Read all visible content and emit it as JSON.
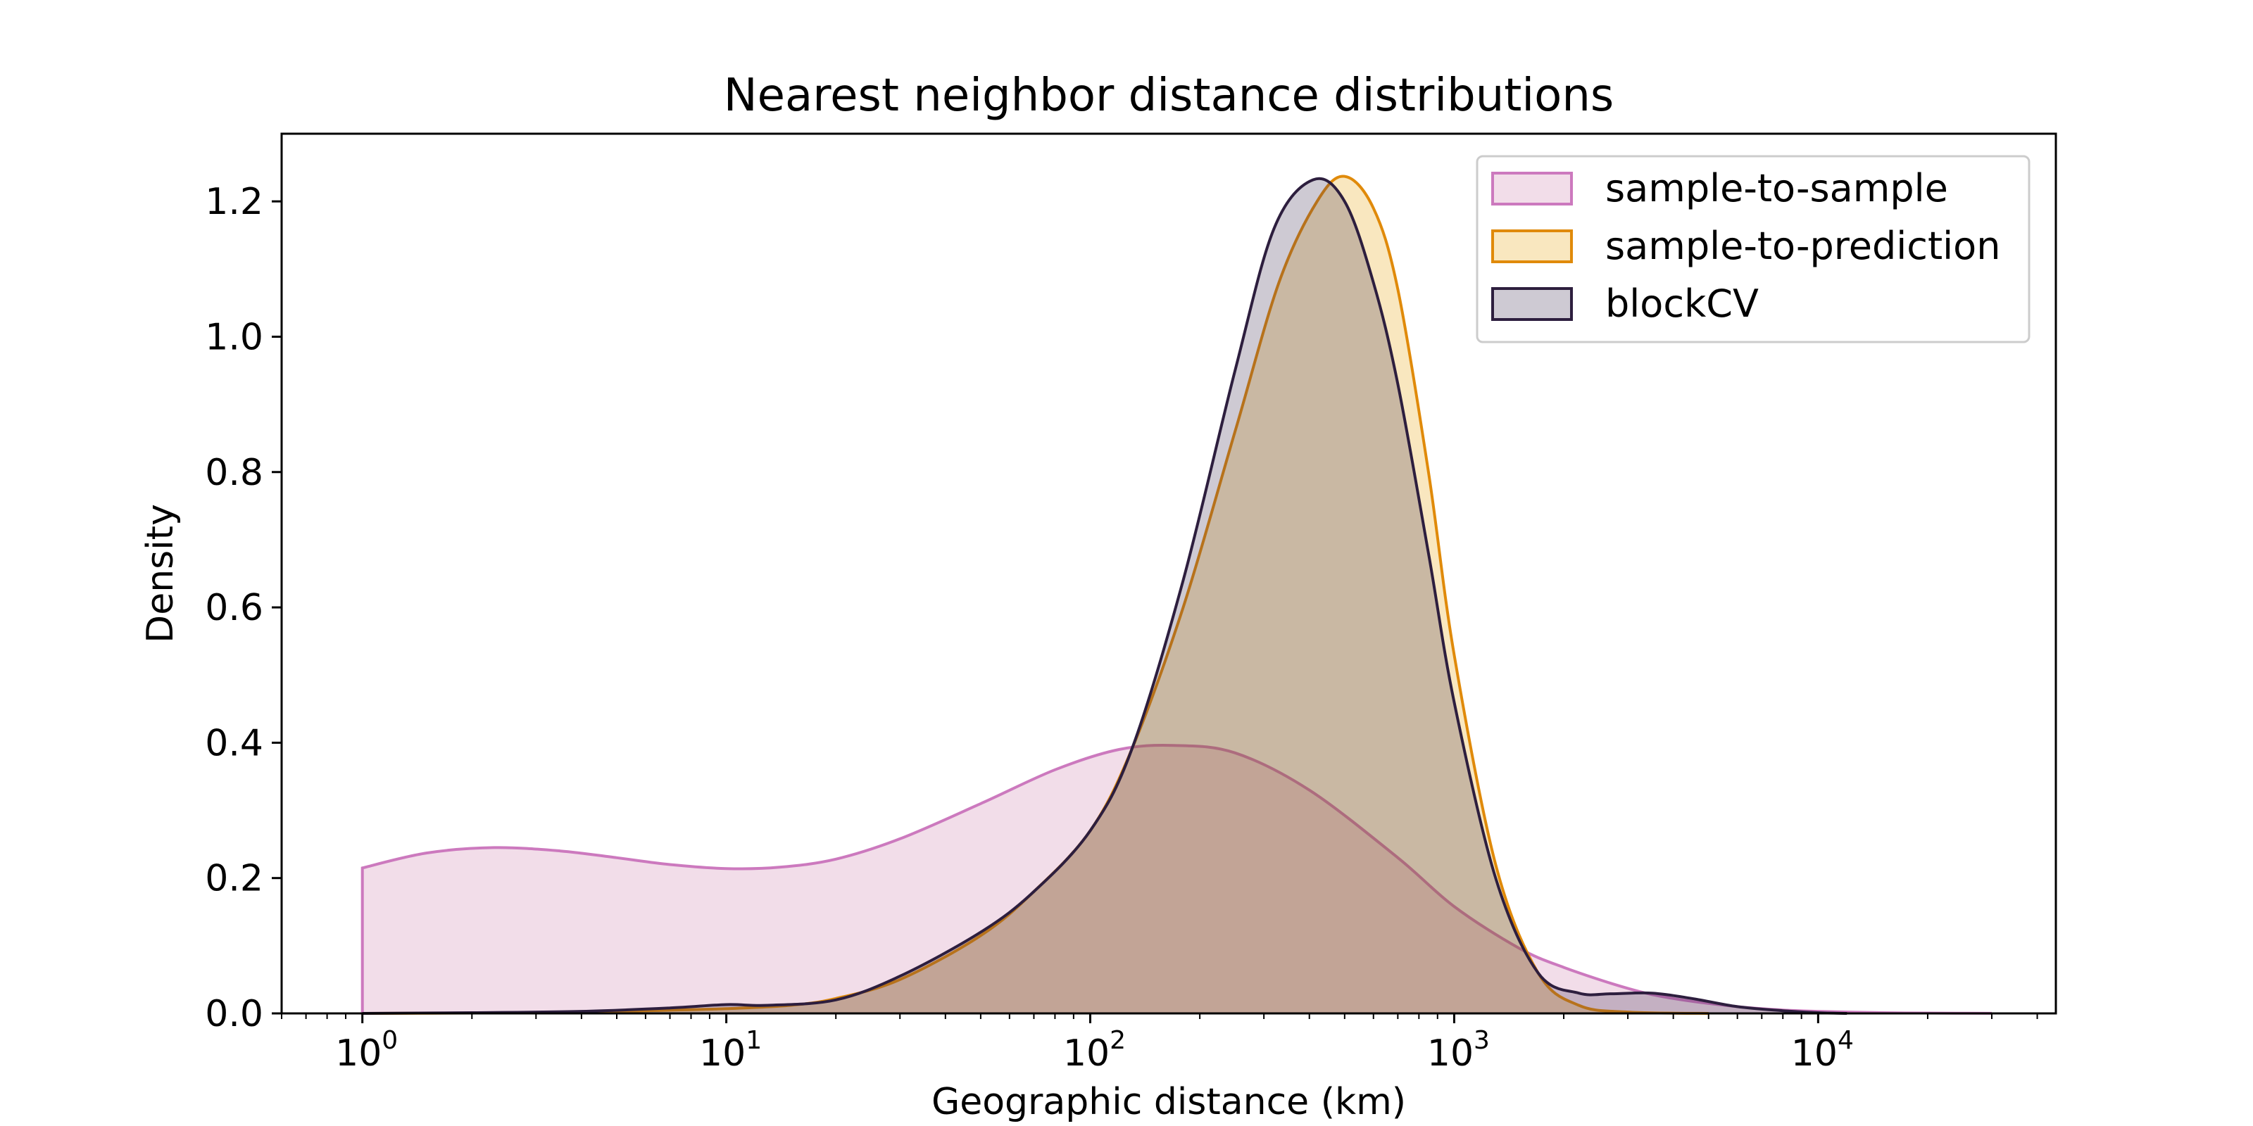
{
  "chart_data": {
    "type": "area",
    "title": "Nearest neighbor distance distributions",
    "xlabel": "Geographic distance (km)",
    "ylabel": "Density",
    "xscale": "log",
    "xlim": [
      0.6,
      45000
    ],
    "ylim": [
      0,
      1.3
    ],
    "grid": false,
    "legend_position": "top-right",
    "x_ticks": [
      {
        "value": 1,
        "base": "10",
        "exp": "0"
      },
      {
        "value": 10,
        "base": "10",
        "exp": "1"
      },
      {
        "value": 100,
        "base": "10",
        "exp": "2"
      },
      {
        "value": 1000,
        "base": "10",
        "exp": "3"
      },
      {
        "value": 10000,
        "base": "10",
        "exp": "4"
      }
    ],
    "y_ticks": [
      "0.0",
      "0.2",
      "0.4",
      "0.6",
      "0.8",
      "1.0",
      "1.2"
    ],
    "series": [
      {
        "name": "sample-to-sample",
        "color": "#cc79be",
        "fill": "#cc79a7",
        "x": [
          1,
          1.5,
          2.3,
          3.5,
          5,
          7,
          10,
          14,
          20,
          30,
          50,
          80,
          120,
          170,
          250,
          400,
          700,
          1000,
          1500,
          2000,
          3000,
          4000,
          6000,
          8000,
          10000,
          15000,
          20000,
          30000
        ],
        "y": [
          0.215,
          0.237,
          0.245,
          0.24,
          0.23,
          0.22,
          0.214,
          0.216,
          0.228,
          0.258,
          0.31,
          0.36,
          0.39,
          0.396,
          0.385,
          0.33,
          0.23,
          0.158,
          0.097,
          0.068,
          0.037,
          0.022,
          0.01,
          0.005,
          0.003,
          0.001,
          0.0005,
          0.0001
        ]
      },
      {
        "name": "sample-to-prediction",
        "color": "#e08a0a",
        "fill": "#e69f00",
        "x": [
          1,
          2,
          4,
          6,
          10,
          15,
          20,
          30,
          50,
          70,
          100,
          130,
          180,
          250,
          330,
          420,
          500,
          600,
          700,
          850,
          1000,
          1300,
          1700,
          2200,
          3000,
          5000
        ],
        "y": [
          0,
          0.0005,
          0.002,
          0.004,
          0.007,
          0.012,
          0.022,
          0.05,
          0.115,
          0.18,
          0.27,
          0.39,
          0.6,
          0.86,
          1.08,
          1.2,
          1.237,
          1.19,
          1.07,
          0.8,
          0.53,
          0.22,
          0.06,
          0.012,
          0.002,
          0
        ]
      },
      {
        "name": "blockCV",
        "color": "#2d1e3e",
        "fill": "#3b2c50",
        "x": [
          1,
          2,
          4,
          7,
          10,
          13,
          20,
          30,
          50,
          70,
          100,
          130,
          180,
          250,
          320,
          410,
          500,
          600,
          700,
          850,
          1000,
          1300,
          1700,
          2200,
          2700,
          3500,
          4500,
          6000,
          8000,
          10000,
          12000
        ],
        "y": [
          0,
          0.001,
          0.003,
          0.008,
          0.013,
          0.012,
          0.02,
          0.055,
          0.12,
          0.18,
          0.27,
          0.39,
          0.64,
          0.95,
          1.16,
          1.232,
          1.2,
          1.08,
          0.93,
          0.68,
          0.46,
          0.2,
          0.06,
          0.03,
          0.029,
          0.03,
          0.022,
          0.01,
          0.004,
          0.001,
          0
        ]
      }
    ]
  }
}
